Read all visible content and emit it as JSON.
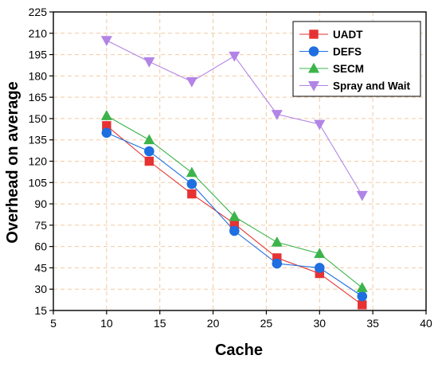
{
  "chart_data": {
    "type": "line",
    "xlabel": "Cache",
    "ylabel": "Overhead on average",
    "xlim": [
      5,
      40
    ],
    "ylim": [
      15,
      225
    ],
    "x_ticks": [
      5,
      10,
      15,
      20,
      25,
      30,
      35,
      40
    ],
    "y_ticks": [
      15,
      30,
      45,
      60,
      75,
      90,
      105,
      120,
      135,
      150,
      165,
      180,
      195,
      210,
      225
    ],
    "grid": true,
    "grid_style": "dashed-peach",
    "legend_position": "top-right",
    "x": [
      10,
      14,
      18,
      22,
      26,
      30,
      34
    ],
    "series": [
      {
        "name": "UADT",
        "marker": "square",
        "color": "#e63232",
        "values": [
          145,
          120,
          97,
          76,
          52,
          41,
          19
        ]
      },
      {
        "name": "DEFS",
        "marker": "circle",
        "color": "#1f6fe0",
        "values": [
          140,
          127,
          104,
          71,
          48,
          45,
          25
        ]
      },
      {
        "name": "SECM",
        "marker": "triangle-up",
        "color": "#3cb44b",
        "values": [
          152,
          135,
          112,
          81,
          63,
          55,
          31
        ]
      },
      {
        "name": "Spray and Wait",
        "marker": "triangle-down",
        "color": "#b284e6",
        "values": [
          205,
          190,
          176,
          194,
          153,
          146,
          96
        ]
      }
    ]
  }
}
